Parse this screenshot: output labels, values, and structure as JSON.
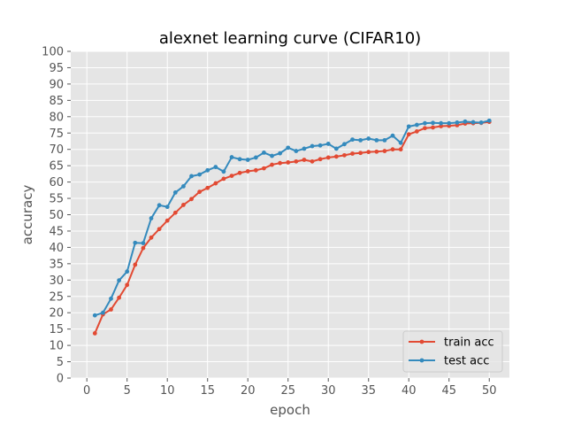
{
  "chart_data": {
    "type": "line",
    "title": "alexnet learning curve (CIFAR10)",
    "xlabel": "epoch",
    "ylabel": "accuracy",
    "xlim": [
      -2,
      52.5
    ],
    "ylim": [
      0,
      100
    ],
    "xticks": [
      0,
      5,
      10,
      15,
      20,
      25,
      30,
      35,
      40,
      45,
      50
    ],
    "yticks": [
      0,
      5,
      10,
      15,
      20,
      25,
      30,
      35,
      40,
      45,
      50,
      55,
      60,
      65,
      70,
      75,
      80,
      85,
      90,
      95,
      100
    ],
    "grid": true,
    "legend_position": "lower-right",
    "background_color": "#e5e5e5",
    "grid_color": "#ffffff",
    "x": [
      1,
      2,
      3,
      4,
      5,
      6,
      7,
      8,
      9,
      10,
      11,
      12,
      13,
      14,
      15,
      16,
      17,
      18,
      19,
      20,
      21,
      22,
      23,
      24,
      25,
      26,
      27,
      28,
      29,
      30,
      31,
      32,
      33,
      34,
      35,
      36,
      37,
      38,
      39,
      40,
      41,
      42,
      43,
      44,
      45,
      46,
      47,
      48,
      49,
      50
    ],
    "series": [
      {
        "name": "train acc",
        "color": "#e24a33",
        "values": [
          13.7,
          19.5,
          21.0,
          24.6,
          28.5,
          34.7,
          39.8,
          43.0,
          45.6,
          48.2,
          50.6,
          53.0,
          54.8,
          57.0,
          58.2,
          59.6,
          61.0,
          61.9,
          62.8,
          63.3,
          63.6,
          64.2,
          65.3,
          65.8,
          66.0,
          66.3,
          66.8,
          66.3,
          67.0,
          67.5,
          67.8,
          68.2,
          68.7,
          68.9,
          69.2,
          69.3,
          69.5,
          70.0,
          70.0,
          74.6,
          75.5,
          76.5,
          76.7,
          77.1,
          77.2,
          77.4,
          77.9,
          78.0,
          78.1,
          78.4
        ]
      },
      {
        "name": "test acc",
        "color": "#348abd",
        "values": [
          19.2,
          20.0,
          24.3,
          29.9,
          32.6,
          41.4,
          41.3,
          48.9,
          52.9,
          52.4,
          56.8,
          58.7,
          61.8,
          62.3,
          63.6,
          64.6,
          63.2,
          67.6,
          67.0,
          66.8,
          67.5,
          69.0,
          68.0,
          68.8,
          70.5,
          69.5,
          70.2,
          71.0,
          71.2,
          71.7,
          70.2,
          71.6,
          73.0,
          72.8,
          73.3,
          72.8,
          72.8,
          74.2,
          72.0,
          77.0,
          77.5,
          78.0,
          78.1,
          78.0,
          78.0,
          78.2,
          78.5,
          78.3,
          78.2,
          78.8
        ]
      }
    ]
  }
}
